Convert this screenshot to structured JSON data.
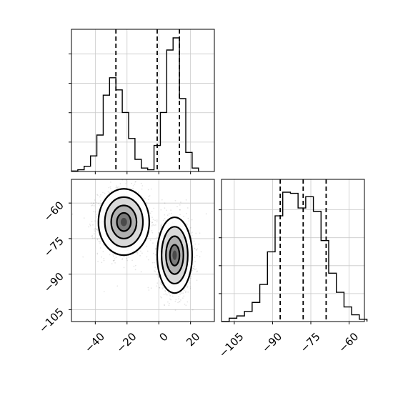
{
  "chart_data": [
    {
      "type": "histogram",
      "panel": "top-left marginal",
      "x_range": [
        -55,
        35
      ],
      "bin_edges": [
        -55,
        -51,
        -47,
        -43,
        -39,
        -35,
        -31,
        -27,
        -23,
        -19,
        -15,
        -11,
        -7,
        -3,
        1,
        5,
        9,
        13,
        17,
        21,
        25
      ],
      "counts": [
        0.3,
        1,
        3,
        9,
        21,
        44,
        54,
        47,
        34,
        19,
        7,
        2,
        1,
        15,
        34,
        70,
        77,
        42,
        11,
        2
      ],
      "quantile_lines": [
        -27,
        -1,
        13
      ],
      "x_ticks": [
        -40,
        -20,
        0,
        20
      ],
      "grid": true
    },
    {
      "type": "scatter",
      "panel": "bottom-left 2D density",
      "x_range": [
        -55,
        35
      ],
      "y_range": [
        -110,
        -50
      ],
      "clusters": [
        {
          "center_x": -22,
          "center_y": -68,
          "spread_x": 8,
          "spread_y": 7,
          "points": 1400
        },
        {
          "center_x": 10,
          "center_y": -82,
          "spread_x": 5.5,
          "spread_y": 8,
          "points": 1300
        }
      ],
      "x_ticks": [
        -40,
        -20,
        0,
        20
      ],
      "x_tick_labels": [
        "−40",
        "−20",
        "0",
        "20"
      ],
      "y_ticks": [
        -60,
        -75,
        -90,
        -105
      ],
      "y_tick_labels": [
        "−60",
        "−75",
        "−90",
        "−105"
      ],
      "grid": true
    },
    {
      "type": "histogram",
      "panel": "bottom-right marginal",
      "x_range": [
        -110,
        -54
      ],
      "bin_edges": [
        -110,
        -107,
        -104,
        -101,
        -98,
        -95,
        -92,
        -89,
        -86,
        -83,
        -80,
        -77,
        -74,
        -71,
        -68,
        -65,
        -62,
        -59,
        -56,
        -53
      ],
      "counts": [
        0,
        3,
        5,
        9,
        17,
        33,
        62,
        94,
        115,
        114,
        101,
        111,
        98,
        72,
        43,
        26,
        13,
        6,
        2
      ],
      "quantile_lines": [
        -87,
        -78,
        -69
      ],
      "x_ticks": [
        -105,
        -90,
        -75,
        -60
      ],
      "x_tick_labels": [
        "−105",
        "−90",
        "−75",
        "−60"
      ],
      "grid": true
    }
  ]
}
